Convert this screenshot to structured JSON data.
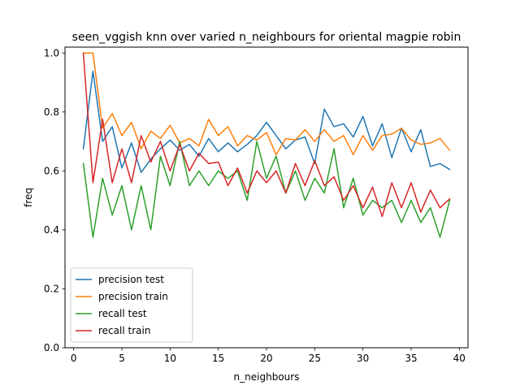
{
  "chart_data": {
    "type": "line",
    "title": "seen_vggish knn over varied n_neighbours for oriental magpie robin",
    "xlabel": "n_neighbours",
    "ylabel": "freq",
    "xlim": [
      -0.9,
      40.9
    ],
    "ylim": [
      0.0,
      1.02
    ],
    "xticks": [
      0,
      5,
      10,
      15,
      20,
      25,
      30,
      35,
      40
    ],
    "yticks": [
      0.0,
      0.2,
      0.4,
      0.6,
      0.8,
      1.0
    ],
    "xtick_labels": [
      "0",
      "5",
      "10",
      "15",
      "20",
      "25",
      "30",
      "35",
      "40"
    ],
    "ytick_labels": [
      "0.0",
      "0.2",
      "0.4",
      "0.6",
      "0.8",
      "1.0"
    ],
    "legend_position": "lower-left",
    "grid": false,
    "x": [
      1,
      2,
      3,
      4,
      5,
      6,
      7,
      8,
      9,
      10,
      11,
      12,
      13,
      14,
      15,
      16,
      17,
      18,
      19,
      20,
      21,
      22,
      23,
      24,
      25,
      26,
      27,
      28,
      29,
      30,
      31,
      32,
      33,
      34,
      35,
      36,
      37,
      38,
      39
    ],
    "series": [
      {
        "name": "precision test",
        "color": "#1f77b4",
        "values": [
          0.675,
          0.938,
          0.7,
          0.75,
          0.61,
          0.695,
          0.595,
          0.64,
          0.675,
          0.705,
          0.67,
          0.69,
          0.65,
          0.71,
          0.665,
          0.695,
          0.665,
          0.69,
          0.72,
          0.765,
          0.72,
          0.675,
          0.705,
          0.715,
          0.625,
          0.81,
          0.75,
          0.76,
          0.715,
          0.785,
          0.685,
          0.76,
          0.645,
          0.745,
          0.665,
          0.74,
          0.615,
          0.625,
          0.605
        ]
      },
      {
        "name": "precision train",
        "color": "#ff7f0e",
        "values": [
          1.0,
          1.0,
          0.745,
          0.795,
          0.72,
          0.765,
          0.675,
          0.735,
          0.71,
          0.755,
          0.695,
          0.71,
          0.685,
          0.775,
          0.72,
          0.75,
          0.685,
          0.72,
          0.705,
          0.73,
          0.655,
          0.71,
          0.705,
          0.74,
          0.7,
          0.74,
          0.7,
          0.72,
          0.655,
          0.72,
          0.67,
          0.72,
          0.725,
          0.745,
          0.705,
          0.69,
          0.695,
          0.71,
          0.67
        ]
      },
      {
        "name": "recall test",
        "color": "#2ca02c",
        "values": [
          0.625,
          0.375,
          0.575,
          0.45,
          0.55,
          0.4,
          0.55,
          0.4,
          0.65,
          0.55,
          0.7,
          0.55,
          0.6,
          0.55,
          0.6,
          0.575,
          0.6,
          0.5,
          0.7,
          0.575,
          0.65,
          0.525,
          0.6,
          0.5,
          0.575,
          0.525,
          0.675,
          0.475,
          0.575,
          0.45,
          0.5,
          0.475,
          0.5,
          0.425,
          0.5,
          0.425,
          0.475,
          0.375,
          0.5
        ]
      },
      {
        "name": "recall train",
        "color": "#d62728",
        "values": [
          1.0,
          0.56,
          0.775,
          0.56,
          0.675,
          0.56,
          0.72,
          0.63,
          0.7,
          0.6,
          0.69,
          0.6,
          0.66,
          0.625,
          0.63,
          0.55,
          0.61,
          0.525,
          0.6,
          0.56,
          0.6,
          0.525,
          0.625,
          0.55,
          0.635,
          0.55,
          0.58,
          0.5,
          0.55,
          0.475,
          0.545,
          0.445,
          0.56,
          0.475,
          0.56,
          0.46,
          0.535,
          0.475,
          0.505
        ]
      }
    ]
  }
}
